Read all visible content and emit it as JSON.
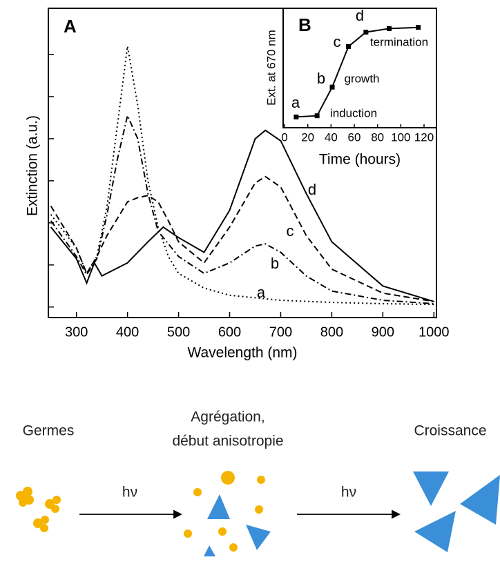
{
  "chart_data": [
    {
      "type": "line",
      "panel": "A",
      "x_label": "Wavelength (nm)",
      "y_label": "Extinction (a.u.)",
      "xlim": [
        245,
        1005
      ],
      "xticks": [
        300,
        400,
        500,
        600,
        700,
        800,
        900,
        1000
      ],
      "ylim": [
        -0.25,
        7.1
      ],
      "yticks": [
        0,
        1,
        2,
        3,
        4,
        5,
        6
      ],
      "ytick_labels": false,
      "color": "#000000",
      "series": [
        {
          "name": "a",
          "dash": "dotted",
          "x": [
            250,
            300,
            320,
            340,
            360,
            380,
            400,
            420,
            440,
            460,
            480,
            500,
            550,
            600,
            700,
            800,
            900,
            1000
          ],
          "values": [
            2.2,
            1.4,
            0.8,
            1.2,
            2.4,
            4.3,
            6.2,
            4.8,
            3.0,
            1.9,
            1.2,
            0.8,
            0.45,
            0.28,
            0.16,
            0.11,
            0.08,
            0.06
          ]
        },
        {
          "name": "b",
          "dash": "dash-dot",
          "x": [
            250,
            300,
            320,
            340,
            360,
            380,
            400,
            420,
            440,
            460,
            500,
            550,
            600,
            650,
            670,
            700,
            750,
            800,
            900,
            1000
          ],
          "values": [
            2.05,
            1.2,
            0.77,
            1.15,
            2.2,
            3.5,
            4.55,
            4.0,
            2.7,
            1.8,
            1.2,
            0.8,
            1.05,
            1.45,
            1.5,
            1.3,
            0.74,
            0.38,
            0.16,
            0.08
          ]
        },
        {
          "name": "c",
          "dash": "dashed",
          "x": [
            250,
            300,
            320,
            340,
            360,
            400,
            420,
            440,
            460,
            480,
            500,
            550,
            600,
            650,
            670,
            700,
            750,
            800,
            900,
            1000
          ],
          "values": [
            2.4,
            1.4,
            0.8,
            1.2,
            1.7,
            2.5,
            2.6,
            2.65,
            2.5,
            2.05,
            1.55,
            1.05,
            1.9,
            2.95,
            3.1,
            2.85,
            1.7,
            0.9,
            0.33,
            0.13
          ]
        },
        {
          "name": "d",
          "dash": "solid",
          "x": [
            250,
            300,
            320,
            335,
            350,
            400,
            440,
            470,
            500,
            550,
            600,
            650,
            670,
            700,
            750,
            800,
            900,
            1000
          ],
          "values": [
            1.9,
            1.15,
            0.57,
            1.05,
            0.74,
            1.05,
            1.55,
            1.9,
            1.65,
            1.3,
            2.3,
            4.0,
            4.2,
            3.95,
            2.7,
            1.55,
            0.5,
            0.13
          ]
        }
      ]
    },
    {
      "type": "line",
      "panel": "B",
      "x_label": "Time (hours)",
      "y_label": "Ext. at 670 nm",
      "xlim": [
        -1.2,
        130.7
      ],
      "xticks": [
        0,
        20,
        40,
        60,
        80,
        100,
        120
      ],
      "ylim": [
        0,
        1
      ],
      "color": "#000000",
      "x": [
        10,
        28,
        41,
        55,
        70,
        90,
        115
      ],
      "values": [
        0.09,
        0.1,
        0.34,
        0.68,
        0.8,
        0.83,
        0.84
      ],
      "annotations": [
        "a",
        "b",
        "c",
        "d",
        "induction",
        "growth",
        "termination"
      ]
    }
  ],
  "scheme": {
    "stages": [
      {
        "label": [
          "Germes"
        ]
      },
      {
        "label": [
          "Agrégation,",
          "début anisotropie"
        ]
      },
      {
        "label": [
          "Croissance"
        ]
      }
    ],
    "arrows": [
      "hν",
      "hν"
    ]
  }
}
